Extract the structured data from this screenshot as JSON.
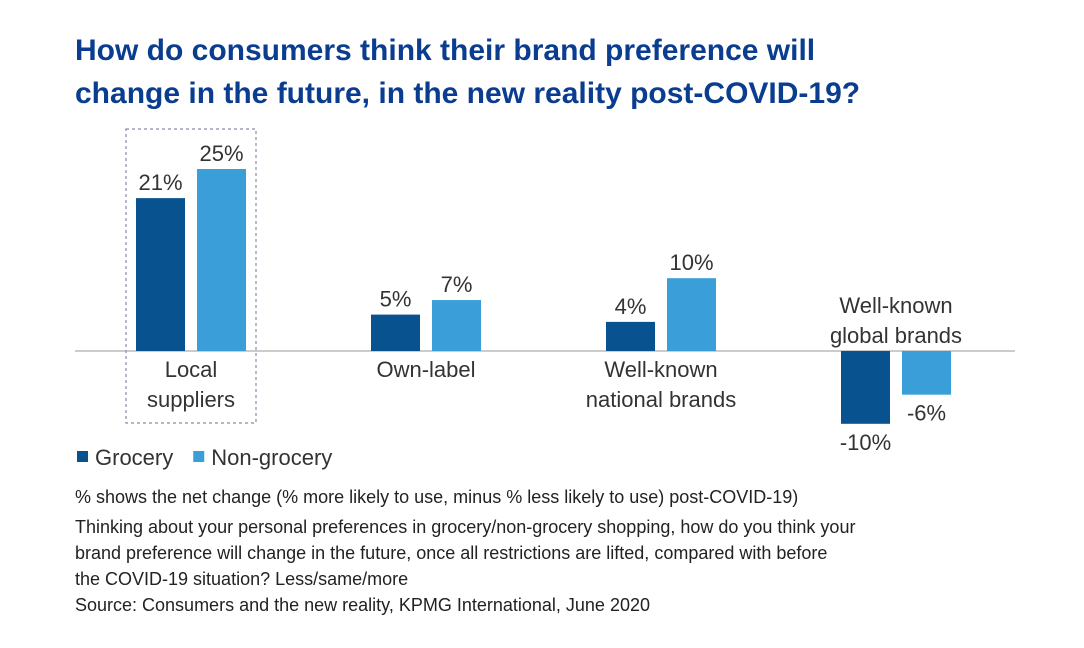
{
  "chart_data": {
    "type": "bar",
    "title_lines": [
      "How do consumers think their brand preference will",
      "change in the future, in the new reality post-COVID-19?"
    ],
    "categories": [
      "Local suppliers",
      "Own-label",
      "Well-known national brands",
      "Well-known global brands"
    ],
    "series": [
      {
        "name": "Grocery",
        "color": "#07528f",
        "values": [
          21,
          5,
          4,
          -10
        ],
        "value_labels": [
          "21%",
          "5%",
          "4%",
          "-10%"
        ]
      },
      {
        "name": "Non-grocery",
        "color": "#3a9ed8",
        "values": [
          25,
          7,
          10,
          -6
        ],
        "value_labels": [
          "25%",
          "7%",
          "10%",
          "-6%"
        ]
      }
    ],
    "footnotes": [
      "% shows the net change (% more likely to use, minus % less likely to use) post-COVID-19)",
      "Thinking about your personal preferences in grocery/non-grocery shopping, how do you think your",
      "brand preference will change in the future, once all restrictions are lifted, compared with before",
      "the COVID-19 situation? Less/same/more",
      "Source: Consumers and the new reality, KPMG International, June 2020"
    ]
  }
}
